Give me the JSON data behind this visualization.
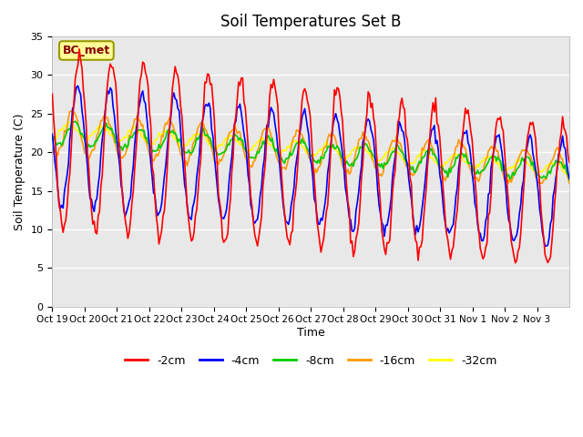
{
  "title": "Soil Temperatures Set B",
  "xlabel": "Time",
  "ylabel": "Soil Temperature (C)",
  "ylim": [
    0,
    35
  ],
  "xtick_labels": [
    "Oct 19",
    "Oct 20",
    "Oct 21",
    "Oct 22",
    "Oct 23",
    "Oct 24",
    "Oct 25",
    "Oct 26",
    "Oct 27",
    "Oct 28",
    "Oct 29",
    "Oct 30",
    "Oct 31",
    "Nov 1",
    "Nov 2",
    "Nov 3"
  ],
  "series_labels": [
    "-2cm",
    "-4cm",
    "-8cm",
    "-16cm",
    "-32cm"
  ],
  "series_colors": [
    "#ff0000",
    "#0000ff",
    "#00cc00",
    "#ff9900",
    "#ffff00"
  ],
  "legend_label": "BC_met",
  "legend_box_facecolor": "#ffff99",
  "legend_box_edgecolor": "#999900",
  "bg_color_inner": "#e8e8e8",
  "bg_color_outer": "#ffffff",
  "grid_color": "#ffffff",
  "title_fontsize": 12
}
